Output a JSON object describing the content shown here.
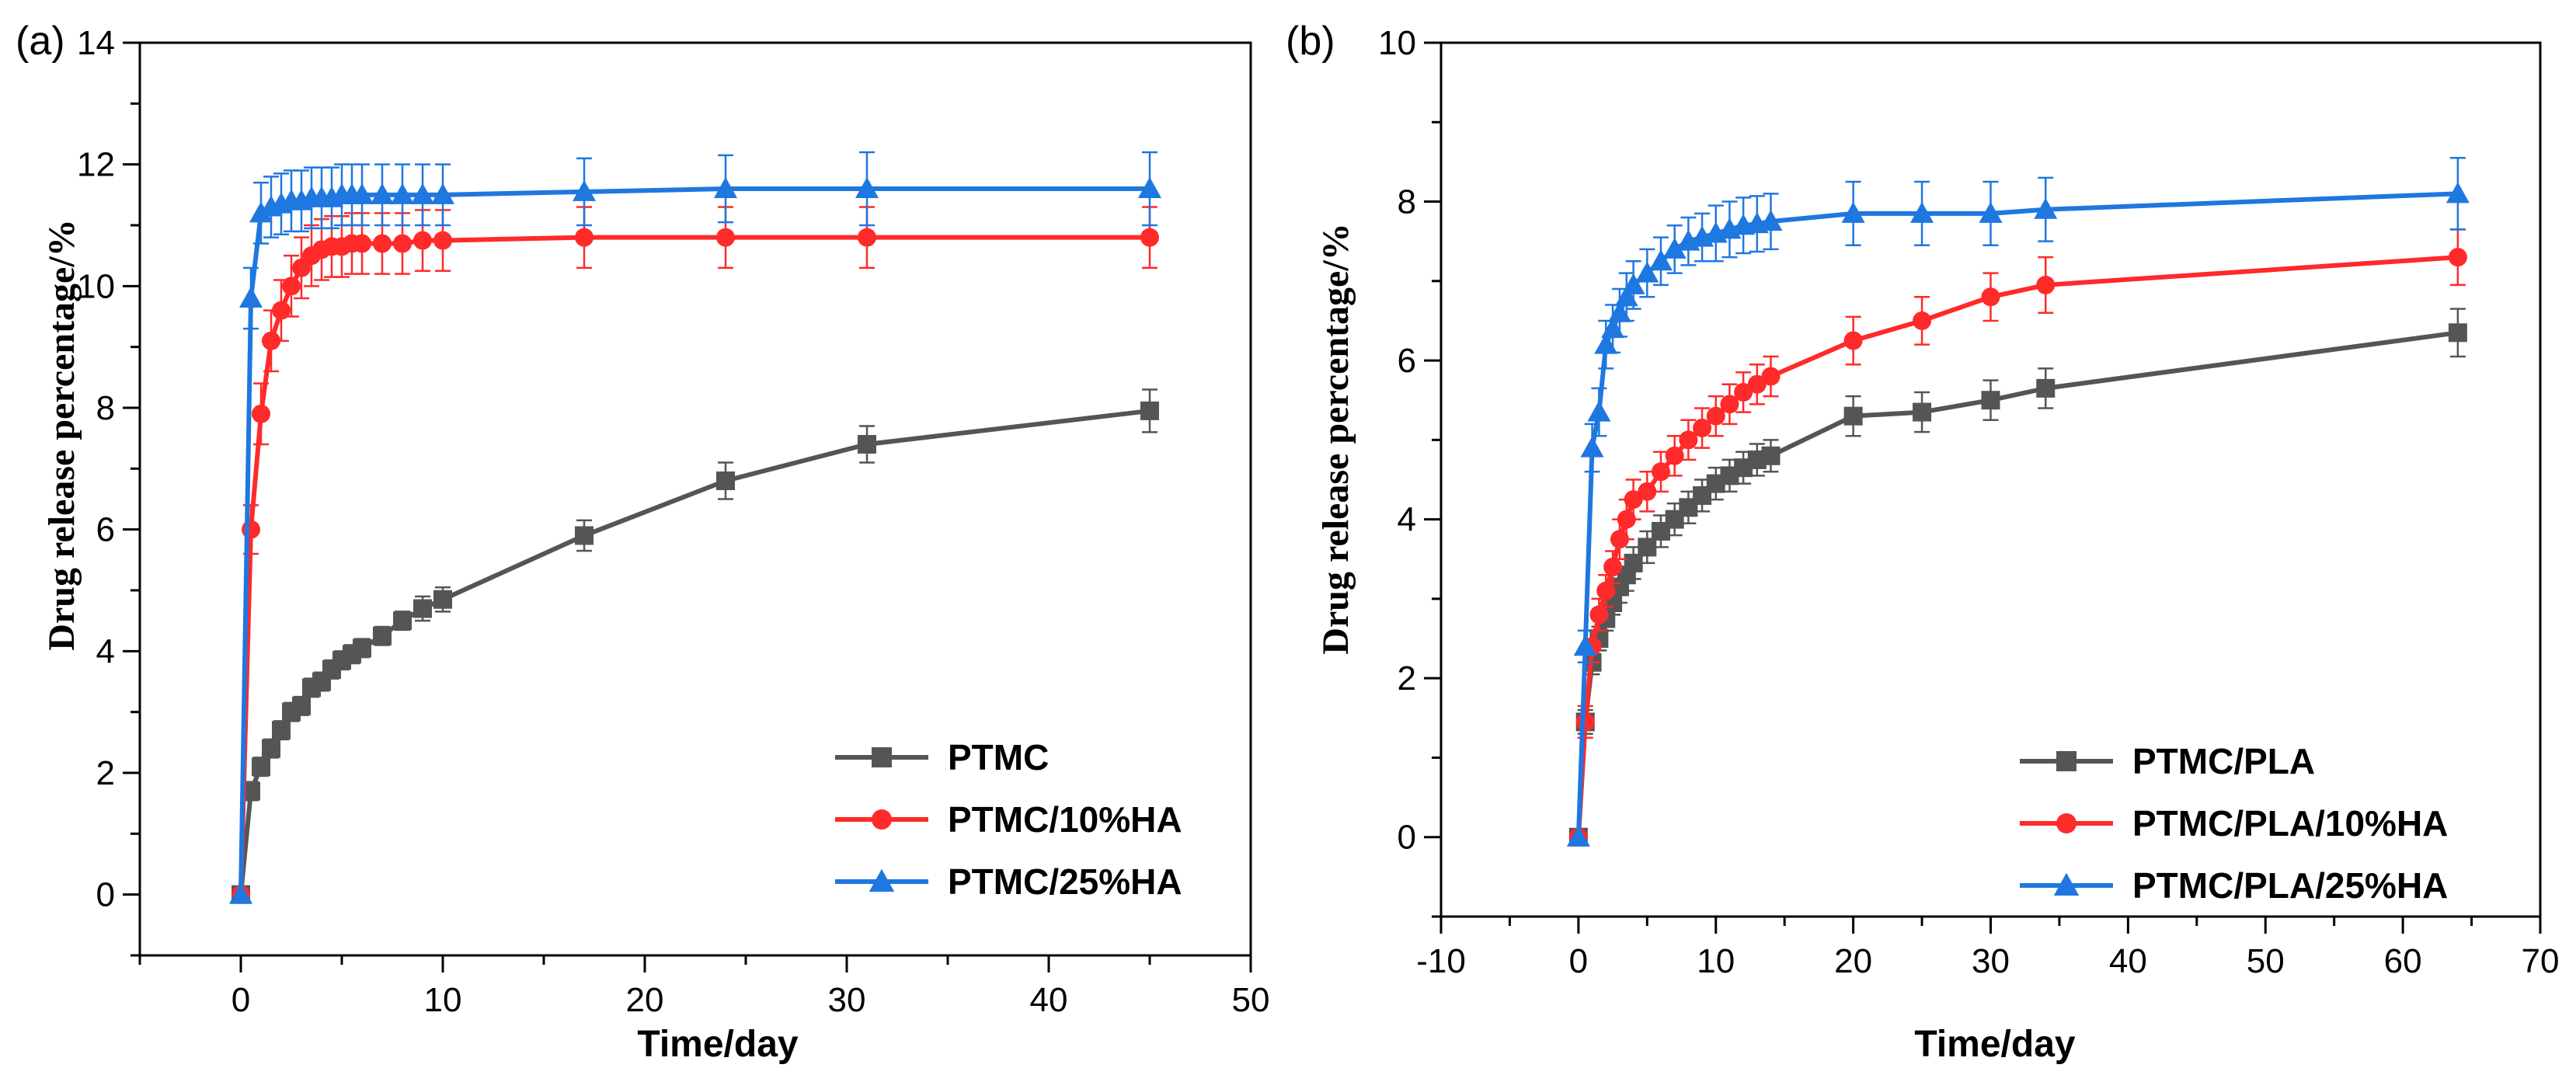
{
  "chart_data": [
    {
      "panel_label": "(a)",
      "type": "line",
      "xlabel": "Time/day",
      "ylabel": "Drug release percentage/%",
      "xlim": [
        -5,
        50
      ],
      "ylim": [
        -1,
        14
      ],
      "xticks": [
        0,
        10,
        20,
        30,
        40,
        50
      ],
      "yticks": [
        0,
        2,
        4,
        6,
        8,
        10,
        12,
        14
      ],
      "legend_position": "bottom-right",
      "series": [
        {
          "name": "PTMC",
          "color": "#555555",
          "marker": "square",
          "x": [
            0,
            0.5,
            1,
            1.5,
            2,
            2.5,
            3,
            3.5,
            4,
            4.5,
            5,
            5.5,
            6,
            7,
            8,
            9,
            10,
            17,
            24,
            31,
            45
          ],
          "y": [
            0,
            1.7,
            2.1,
            2.4,
            2.7,
            3.0,
            3.1,
            3.4,
            3.5,
            3.7,
            3.85,
            3.95,
            4.05,
            4.25,
            4.5,
            4.7,
            4.85,
            5.9,
            6.8,
            7.4,
            7.95
          ],
          "err": [
            0,
            0.15,
            0.15,
            0.15,
            0.15,
            0.15,
            0.15,
            0.15,
            0.15,
            0.15,
            0.15,
            0.15,
            0.15,
            0.15,
            0.15,
            0.2,
            0.2,
            0.25,
            0.3,
            0.3,
            0.35
          ]
        },
        {
          "name": "PTMC/10%HA",
          "color": "#ff2a2a",
          "marker": "circle",
          "x": [
            0,
            0.5,
            1,
            1.5,
            2,
            2.5,
            3,
            3.5,
            4,
            4.5,
            5,
            5.5,
            6,
            7,
            8,
            9,
            10,
            17,
            24,
            31,
            45
          ],
          "y": [
            0,
            6.0,
            7.9,
            9.1,
            9.6,
            10.0,
            10.3,
            10.5,
            10.6,
            10.65,
            10.65,
            10.7,
            10.7,
            10.7,
            10.7,
            10.75,
            10.75,
            10.8,
            10.8,
            10.8,
            10.8
          ],
          "err": [
            0,
            0.4,
            0.5,
            0.5,
            0.5,
            0.5,
            0.5,
            0.5,
            0.5,
            0.5,
            0.5,
            0.5,
            0.5,
            0.5,
            0.5,
            0.5,
            0.5,
            0.5,
            0.5,
            0.5,
            0.5
          ]
        },
        {
          "name": "PTMC/25%HA",
          "color": "#1f77e0",
          "marker": "triangle",
          "x": [
            0,
            0.5,
            1,
            1.5,
            2,
            2.5,
            3,
            3.5,
            4,
            4.5,
            5,
            5.5,
            6,
            7,
            8,
            9,
            10,
            17,
            24,
            31,
            45
          ],
          "y": [
            0,
            9.8,
            11.2,
            11.3,
            11.35,
            11.4,
            11.4,
            11.45,
            11.45,
            11.45,
            11.5,
            11.5,
            11.5,
            11.5,
            11.5,
            11.5,
            11.5,
            11.55,
            11.6,
            11.6,
            11.6
          ],
          "err": [
            0,
            0.5,
            0.5,
            0.5,
            0.5,
            0.5,
            0.5,
            0.5,
            0.5,
            0.5,
            0.5,
            0.5,
            0.5,
            0.5,
            0.5,
            0.5,
            0.5,
            0.55,
            0.55,
            0.6,
            0.6
          ]
        }
      ]
    },
    {
      "panel_label": "(b)",
      "type": "line",
      "xlabel": "Time/day",
      "ylabel": "Drug release percentage/%",
      "xlim": [
        -10,
        70
      ],
      "ylim": [
        -1,
        10
      ],
      "xticks": [
        -10,
        0,
        10,
        20,
        30,
        40,
        50,
        60,
        70
      ],
      "yticks": [
        0,
        2,
        4,
        6,
        8,
        10
      ],
      "legend_position": "bottom-right",
      "series": [
        {
          "name": "PTMC/PLA",
          "color": "#555555",
          "marker": "square",
          "x": [
            0,
            0.5,
            1,
            1.5,
            2,
            2.5,
            3,
            3.5,
            4,
            5,
            6,
            7,
            8,
            9,
            10,
            11,
            12,
            13,
            14,
            20,
            25,
            30,
            34,
            64
          ],
          "y": [
            0,
            1.45,
            2.2,
            2.5,
            2.75,
            2.95,
            3.15,
            3.3,
            3.45,
            3.65,
            3.85,
            4.0,
            4.15,
            4.3,
            4.45,
            4.55,
            4.65,
            4.75,
            4.8,
            5.3,
            5.35,
            5.5,
            5.65,
            6.35
          ],
          "err": [
            0,
            0.15,
            0.15,
            0.15,
            0.15,
            0.15,
            0.2,
            0.2,
            0.2,
            0.2,
            0.2,
            0.2,
            0.2,
            0.2,
            0.2,
            0.2,
            0.2,
            0.2,
            0.2,
            0.25,
            0.25,
            0.25,
            0.25,
            0.3
          ]
        },
        {
          "name": "PTMC/PLA/10%HA",
          "color": "#ff2a2a",
          "marker": "circle",
          "x": [
            0,
            0.5,
            1,
            1.5,
            2,
            2.5,
            3,
            3.5,
            4,
            5,
            6,
            7,
            8,
            9,
            10,
            11,
            12,
            13,
            14,
            20,
            25,
            30,
            34,
            64
          ],
          "y": [
            0,
            1.45,
            2.4,
            2.8,
            3.1,
            3.4,
            3.75,
            4.0,
            4.25,
            4.35,
            4.6,
            4.8,
            5.0,
            5.15,
            5.3,
            5.45,
            5.6,
            5.7,
            5.8,
            6.25,
            6.5,
            6.8,
            6.95,
            7.3
          ],
          "err": [
            0,
            0.2,
            0.2,
            0.2,
            0.2,
            0.2,
            0.25,
            0.25,
            0.25,
            0.25,
            0.25,
            0.25,
            0.25,
            0.25,
            0.25,
            0.25,
            0.25,
            0.25,
            0.25,
            0.3,
            0.3,
            0.3,
            0.35,
            0.35
          ]
        },
        {
          "name": "PTMC/PLA/25%HA",
          "color": "#1f77e0",
          "marker": "triangle",
          "x": [
            0,
            0.5,
            1,
            1.5,
            2,
            2.5,
            3,
            3.5,
            4,
            5,
            6,
            7,
            8,
            9,
            10,
            11,
            12,
            13,
            14,
            20,
            25,
            30,
            34,
            64
          ],
          "y": [
            0,
            2.4,
            4.9,
            5.35,
            6.2,
            6.4,
            6.6,
            6.8,
            6.95,
            7.1,
            7.25,
            7.4,
            7.5,
            7.55,
            7.6,
            7.65,
            7.7,
            7.72,
            7.75,
            7.85,
            7.85,
            7.85,
            7.9,
            8.1
          ],
          "err": [
            0,
            0.2,
            0.3,
            0.3,
            0.3,
            0.3,
            0.3,
            0.3,
            0.3,
            0.3,
            0.3,
            0.3,
            0.3,
            0.3,
            0.35,
            0.35,
            0.35,
            0.35,
            0.35,
            0.4,
            0.4,
            0.4,
            0.4,
            0.45
          ]
        }
      ]
    }
  ]
}
